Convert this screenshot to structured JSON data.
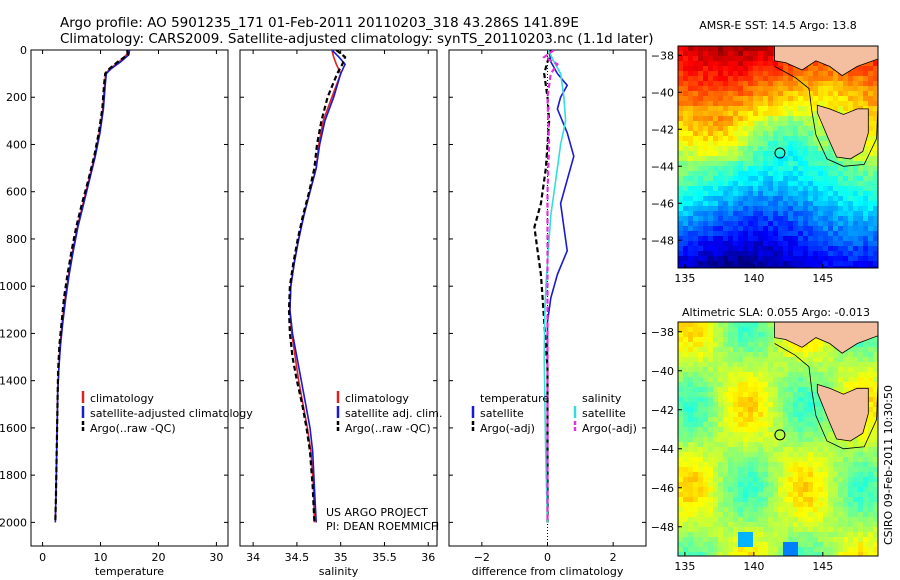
{
  "header": {
    "line1": "Argo profile: AO 5901235_171 01-Feb-2011 20110203_318 43.286S 141.89E",
    "line2": "Climatology: CARS2009. Satellite-adjusted climatology: synTS_20110203.nc (1.1d later)"
  },
  "side_label": "CSIRO 09-Feb-2011 10:30:50",
  "project": {
    "line1": "US ARGO PROJECT",
    "line2": "PI: DEAN ROEMMICH"
  },
  "colors": {
    "climatology": "#dd2222",
    "satellite": "#1a1ad0",
    "argo": "#000000",
    "sat_salinity": "#33dddd",
    "argo_salinity": "#dd33dd",
    "land": "#f4bfa0"
  },
  "chart_data": [
    {
      "type": "line",
      "name": "temperature-profile",
      "xlabel": "temperature",
      "xlim": [
        -2,
        32
      ],
      "xticks": [
        0,
        10,
        20,
        30
      ],
      "ylim": [
        0,
        2100
      ],
      "yticks": [
        0,
        200,
        400,
        600,
        800,
        1000,
        1200,
        1400,
        1600,
        1800,
        2000
      ],
      "y_reversed": true,
      "legend": [
        "climatology",
        "satellite-adjusted climatology",
        "Argo(..raw -QC)"
      ],
      "series": [
        {
          "name": "climatology",
          "color": "#dd2222",
          "dash": "",
          "x": [
            14.8,
            14.5,
            13.2,
            11.6,
            10.9,
            10.7,
            10.4,
            9.8,
            9.0,
            8.0,
            7.0,
            6.0,
            5.2,
            4.5,
            3.9,
            3.4,
            3.0,
            2.8,
            2.6,
            2.5,
            2.4,
            2.3,
            2.2
          ],
          "y": [
            0,
            20,
            50,
            80,
            100,
            150,
            250,
            350,
            450,
            550,
            650,
            750,
            850,
            950,
            1050,
            1150,
            1250,
            1350,
            1450,
            1600,
            1750,
            1900,
            2000
          ]
        },
        {
          "name": "satellite-adjusted climatology",
          "color": "#1a1ad0",
          "dash": "",
          "x": [
            15.0,
            14.9,
            13.5,
            11.8,
            11.0,
            10.8,
            10.5,
            9.9,
            9.1,
            8.1,
            7.1,
            6.1,
            5.3,
            4.6,
            4.0,
            3.5,
            3.1,
            2.8,
            2.6,
            2.5,
            2.4,
            2.3,
            2.2
          ],
          "y": [
            0,
            20,
            50,
            80,
            100,
            150,
            250,
            350,
            450,
            550,
            650,
            750,
            850,
            950,
            1050,
            1150,
            1250,
            1350,
            1450,
            1600,
            1750,
            1900,
            2000
          ]
        },
        {
          "name": "Argo(..raw -QC)",
          "color": "#000000",
          "dash": "5,3",
          "x": [
            14.6,
            14.7,
            13.0,
            11.5,
            10.8,
            10.6,
            10.3,
            9.7,
            8.9,
            7.9,
            6.8,
            5.8,
            5.0,
            4.3,
            3.7,
            3.3,
            2.9,
            2.7,
            2.6,
            2.5,
            2.4,
            2.3,
            2.2
          ],
          "y": [
            0,
            20,
            50,
            80,
            100,
            150,
            250,
            350,
            450,
            550,
            650,
            750,
            850,
            950,
            1050,
            1150,
            1250,
            1350,
            1450,
            1600,
            1750,
            1900,
            2000
          ]
        }
      ]
    },
    {
      "type": "line",
      "name": "salinity-profile",
      "xlabel": "salinity",
      "xlim": [
        33.85,
        36.1
      ],
      "xticks": [
        34,
        34.5,
        35,
        35.5,
        36
      ],
      "xticklabels": [
        "34",
        "34.5",
        "35",
        "35.5",
        "36"
      ],
      "ylim": [
        0,
        2100
      ],
      "y_reversed": true,
      "legend": [
        "climatology",
        "satellite adj. clim.",
        "Argo(..raw -QC)"
      ],
      "series": [
        {
          "name": "climatology",
          "color": "#dd2222",
          "dash": "",
          "x": [
            34.9,
            34.92,
            34.95,
            35.0,
            34.9,
            34.8,
            34.75,
            34.72,
            34.65,
            34.58,
            34.52,
            34.47,
            34.43,
            34.42,
            34.44,
            34.48,
            34.52,
            34.57,
            34.62,
            34.66,
            34.69,
            34.7
          ],
          "y": [
            0,
            30,
            60,
            100,
            200,
            300,
            400,
            500,
            600,
            700,
            800,
            900,
            1000,
            1100,
            1200,
            1300,
            1400,
            1500,
            1600,
            1700,
            1850,
            2000
          ]
        },
        {
          "name": "satellite adj. clim.",
          "color": "#1a1ad0",
          "dash": "",
          "x": [
            34.9,
            34.98,
            35.05,
            35.0,
            34.92,
            34.82,
            34.76,
            34.72,
            34.65,
            34.58,
            34.52,
            34.47,
            34.43,
            34.42,
            34.45,
            34.5,
            34.55,
            34.6,
            34.65,
            34.68,
            34.7,
            34.72
          ],
          "y": [
            0,
            30,
            60,
            100,
            200,
            300,
            400,
            500,
            600,
            700,
            800,
            900,
            1000,
            1100,
            1200,
            1300,
            1400,
            1500,
            1600,
            1700,
            1850,
            2000
          ]
        },
        {
          "name": "Argo(..raw -QC)",
          "color": "#000000",
          "dash": "5,3",
          "x": [
            34.95,
            35.05,
            35.02,
            34.96,
            34.85,
            34.78,
            34.73,
            34.7,
            34.64,
            34.57,
            34.51,
            34.46,
            34.42,
            34.41,
            34.42,
            34.45,
            34.5,
            34.56,
            34.61,
            34.65,
            34.68,
            34.7
          ],
          "y": [
            0,
            30,
            60,
            100,
            200,
            300,
            400,
            500,
            600,
            700,
            800,
            900,
            1000,
            1100,
            1200,
            1300,
            1400,
            1500,
            1600,
            1700,
            1850,
            2000
          ]
        }
      ]
    },
    {
      "type": "line",
      "name": "difference-profile",
      "xlabel": "difference from climatology",
      "xlim": [
        -3,
        3
      ],
      "xticks": [
        -2,
        0,
        2
      ],
      "ylim": [
        0,
        2100
      ],
      "y_reversed": true,
      "legend_temperature_title": "temperature",
      "legend_salinity_title": "salinity",
      "legend_temperature": [
        "satellite",
        "Argo(-adj)"
      ],
      "legend_salinity": [
        "satellite",
        "Argo(-adj)"
      ],
      "series": [
        {
          "name": "temperature satellite",
          "color": "#1a1ad0",
          "dash": "",
          "x": [
            0.05,
            0.1,
            0.3,
            0.6,
            0.4,
            0.3,
            0.6,
            0.8,
            0.6,
            0.4,
            0.5,
            0.6,
            0.3,
            0.1,
            0.0,
            0.0,
            0.0,
            0.0,
            0.0,
            0.0,
            0.0
          ],
          "y": [
            0,
            50,
            100,
            150,
            200,
            250,
            350,
            450,
            550,
            650,
            750,
            850,
            950,
            1050,
            1150,
            1300,
            1450,
            1600,
            1750,
            1900,
            2000
          ]
        },
        {
          "name": "temperature Argo(-adj)",
          "color": "#000000",
          "dash": "5,3",
          "x": [
            0.1,
            0.0,
            -0.1,
            0.0,
            0.05,
            0.0,
            -0.05,
            -0.2,
            -0.4,
            -0.3,
            -0.2,
            -0.15,
            -0.1,
            -0.05,
            0.0,
            0.0,
            0.0,
            0.0,
            0.0,
            0.0
          ],
          "y": [
            0,
            50,
            100,
            200,
            300,
            400,
            500,
            650,
            750,
            850,
            950,
            1050,
            1150,
            1250,
            1350,
            1500,
            1650,
            1800,
            1900,
            2000
          ]
        },
        {
          "name": "salinity satellite",
          "color": "#33dddd",
          "dash": "",
          "x": [
            0.02,
            0.2,
            0.4,
            0.5,
            0.55,
            0.4,
            0.3,
            0.2,
            0.1,
            0.05,
            0.0,
            -0.05,
            -0.08,
            -0.1,
            -0.08,
            -0.06,
            -0.04,
            -0.02,
            0.0
          ],
          "y": [
            0,
            50,
            100,
            200,
            300,
            400,
            500,
            600,
            700,
            800,
            900,
            1000,
            1100,
            1300,
            1500,
            1650,
            1800,
            1900,
            2000
          ]
        },
        {
          "name": "salinity Argo(-adj)",
          "color": "#dd33dd",
          "dash": "5,3",
          "x": [
            0.2,
            -0.1,
            0.3,
            0.1,
            0.0,
            0.05,
            0.0,
            0.0,
            0.0,
            0.0,
            0.0,
            0.0,
            0.0,
            0.0,
            0.0
          ],
          "y": [
            0,
            30,
            60,
            100,
            200,
            400,
            600,
            800,
            1000,
            1200,
            1400,
            1600,
            1800,
            1900,
            2000
          ]
        }
      ]
    },
    {
      "type": "heatmap",
      "name": "amsr-sst-map",
      "title": "AMSR-E SST: 14.5 Argo: 13.8",
      "xlim": [
        134.5,
        149
      ],
      "ylim": [
        -49.5,
        -37.5
      ],
      "xticks": [
        135,
        140,
        145
      ],
      "yticks": [
        -38,
        -40,
        -42,
        -44,
        -46,
        -48
      ],
      "profile_location": [
        141.89,
        -43.286
      ],
      "colormap": "jet"
    },
    {
      "type": "heatmap",
      "name": "altimetric-sla-map",
      "title": "Altimetric SLA: 0.055 Argo: -0.013",
      "xlim": [
        134.5,
        149
      ],
      "ylim": [
        -49.5,
        -37.5
      ],
      "xticks": [
        135,
        140,
        145
      ],
      "yticks": [
        -38,
        -40,
        -42,
        -44,
        -46,
        -48
      ],
      "profile_location": [
        141.89,
        -43.286
      ],
      "colormap": "green-blue"
    }
  ]
}
